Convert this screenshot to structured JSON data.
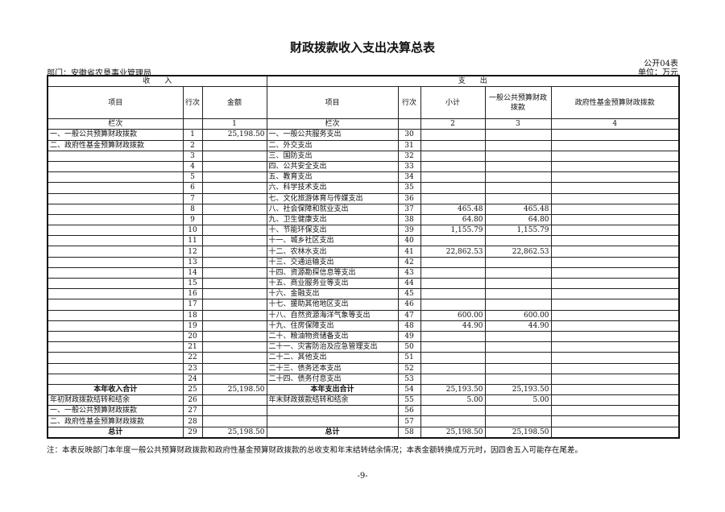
{
  "title": "财政拨款收入支出决算总表",
  "form_code": "公开04表",
  "department": "部门：安徽省农垦事业管理局",
  "unit": "单位：万元",
  "headers": {
    "income": "收　　入",
    "expense": "支　　出",
    "item": "项目",
    "line": "行次",
    "amount": "金额",
    "subtotal": "小计",
    "general_budget": "一般公共预算财政拨款",
    "gov_fund": "政府性基金预算财政拨款",
    "col_label": "栏次",
    "col_1": "1",
    "col_2": "2",
    "col_3": "3",
    "col_4": "4"
  },
  "rows": [
    {
      "in_item": "一、一般公共预算财政拨款",
      "in_line": "1",
      "in_amt": "25,198.50",
      "out_item": "一、一般公共服务支出",
      "out_line": "30",
      "sub": "",
      "gen": "",
      "fund": ""
    },
    {
      "in_item": "二、政府性基金预算财政拨款",
      "in_line": "2",
      "in_amt": "",
      "out_item": "二、外交支出",
      "out_line": "31",
      "sub": "",
      "gen": "",
      "fund": ""
    },
    {
      "in_item": "",
      "in_line": "3",
      "in_amt": "",
      "out_item": "三、国防支出",
      "out_line": "32",
      "sub": "",
      "gen": "",
      "fund": ""
    },
    {
      "in_item": "",
      "in_line": "4",
      "in_amt": "",
      "out_item": "四、公共安全支出",
      "out_line": "33",
      "sub": "",
      "gen": "",
      "fund": ""
    },
    {
      "in_item": "",
      "in_line": "5",
      "in_amt": "",
      "out_item": "五、教育支出",
      "out_line": "34",
      "sub": "",
      "gen": "",
      "fund": ""
    },
    {
      "in_item": "",
      "in_line": "6",
      "in_amt": "",
      "out_item": "六、科学技术支出",
      "out_line": "35",
      "sub": "",
      "gen": "",
      "fund": ""
    },
    {
      "in_item": "",
      "in_line": "7",
      "in_amt": "",
      "out_item": "七、文化旅游体育与传媒支出",
      "out_line": "36",
      "sub": "",
      "gen": "",
      "fund": ""
    },
    {
      "in_item": "",
      "in_line": "8",
      "in_amt": "",
      "out_item": "八、社会保障和就业支出",
      "out_line": "37",
      "sub": "465.48",
      "gen": "465.48",
      "fund": ""
    },
    {
      "in_item": "",
      "in_line": "9",
      "in_amt": "",
      "out_item": "九、卫生健康支出",
      "out_line": "38",
      "sub": "64.80",
      "gen": "64.80",
      "fund": ""
    },
    {
      "in_item": "",
      "in_line": "10",
      "in_amt": "",
      "out_item": "十、节能环保支出",
      "out_line": "39",
      "sub": "1,155.79",
      "gen": "1,155.79",
      "fund": ""
    },
    {
      "in_item": "",
      "in_line": "11",
      "in_amt": "",
      "out_item": "十一、城乡社区支出",
      "out_line": "40",
      "sub": "",
      "gen": "",
      "fund": ""
    },
    {
      "in_item": "",
      "in_line": "12",
      "in_amt": "",
      "out_item": "十二、农林水支出",
      "out_line": "41",
      "sub": "22,862.53",
      "gen": "22,862.53",
      "fund": ""
    },
    {
      "in_item": "",
      "in_line": "13",
      "in_amt": "",
      "out_item": "十三、交通运输支出",
      "out_line": "42",
      "sub": "",
      "gen": "",
      "fund": ""
    },
    {
      "in_item": "",
      "in_line": "14",
      "in_amt": "",
      "out_item": "十四、资源勘探信息等支出",
      "out_line": "43",
      "sub": "",
      "gen": "",
      "fund": ""
    },
    {
      "in_item": "",
      "in_line": "15",
      "in_amt": "",
      "out_item": "十五、商业服务业等支出",
      "out_line": "44",
      "sub": "",
      "gen": "",
      "fund": ""
    },
    {
      "in_item": "",
      "in_line": "16",
      "in_amt": "",
      "out_item": "十六、金融支出",
      "out_line": "45",
      "sub": "",
      "gen": "",
      "fund": ""
    },
    {
      "in_item": "",
      "in_line": "17",
      "in_amt": "",
      "out_item": "十七、援助其他地区支出",
      "out_line": "46",
      "sub": "",
      "gen": "",
      "fund": ""
    },
    {
      "in_item": "",
      "in_line": "18",
      "in_amt": "",
      "out_item": "十八、自然资源海洋气象等支出",
      "out_line": "47",
      "sub": "600.00",
      "gen": "600.00",
      "fund": ""
    },
    {
      "in_item": "",
      "in_line": "19",
      "in_amt": "",
      "out_item": "十九、住房保障支出",
      "out_line": "48",
      "sub": "44.90",
      "gen": "44.90",
      "fund": ""
    },
    {
      "in_item": "",
      "in_line": "20",
      "in_amt": "",
      "out_item": "二十、粮油物资储备支出",
      "out_line": "49",
      "sub": "",
      "gen": "",
      "fund": ""
    },
    {
      "in_item": "",
      "in_line": "21",
      "in_amt": "",
      "out_item": "二十一、灾害防治及应急管理支出",
      "out_line": "50",
      "sub": "",
      "gen": "",
      "fund": ""
    },
    {
      "in_item": "",
      "in_line": "22",
      "in_amt": "",
      "out_item": "二十二、其他支出",
      "out_line": "51",
      "sub": "",
      "gen": "",
      "fund": ""
    },
    {
      "in_item": "",
      "in_line": "23",
      "in_amt": "",
      "out_item": "二十三、债务还本支出",
      "out_line": "52",
      "sub": "",
      "gen": "",
      "fund": ""
    },
    {
      "in_item": "",
      "in_line": "24",
      "in_amt": "",
      "out_item": "二十四、债务付息支出",
      "out_line": "53",
      "sub": "",
      "gen": "",
      "fund": ""
    },
    {
      "in_item": "本年收入合计",
      "in_line": "25",
      "in_amt": "25,198.50",
      "out_item": "本年支出合计",
      "out_line": "54",
      "sub": "25,193.50",
      "gen": "25,193.50",
      "fund": "",
      "bold": true
    },
    {
      "in_item": "年初财政拨款结转和结余",
      "in_line": "26",
      "in_amt": "",
      "out_item": "年末财政拨款结转和结余",
      "out_line": "55",
      "sub": "5.00",
      "gen": "5.00",
      "fund": ""
    },
    {
      "in_item": "一、一般公共预算财政拨款",
      "in_line": "27",
      "in_amt": "",
      "out_item": "",
      "out_line": "56",
      "sub": "",
      "gen": "",
      "fund": ""
    },
    {
      "in_item": "二、政府性基金预算财政拨款",
      "in_line": "28",
      "in_amt": "",
      "out_item": "",
      "out_line": "57",
      "sub": "",
      "gen": "",
      "fund": ""
    },
    {
      "in_item": "总计",
      "in_line": "29",
      "in_amt": "25,198.50",
      "out_item": "总计",
      "out_line": "58",
      "sub": "25,198.50",
      "gen": "25,198.50",
      "fund": "",
      "bold": true
    }
  ],
  "note": "注：本表反映部门本年度一般公共预算财政拨款和政府性基金预算财政拨款的总收支和年末结转结余情况；本表金额转换成万元时，因四舍五入可能存在尾差。",
  "page_number": "-9-"
}
